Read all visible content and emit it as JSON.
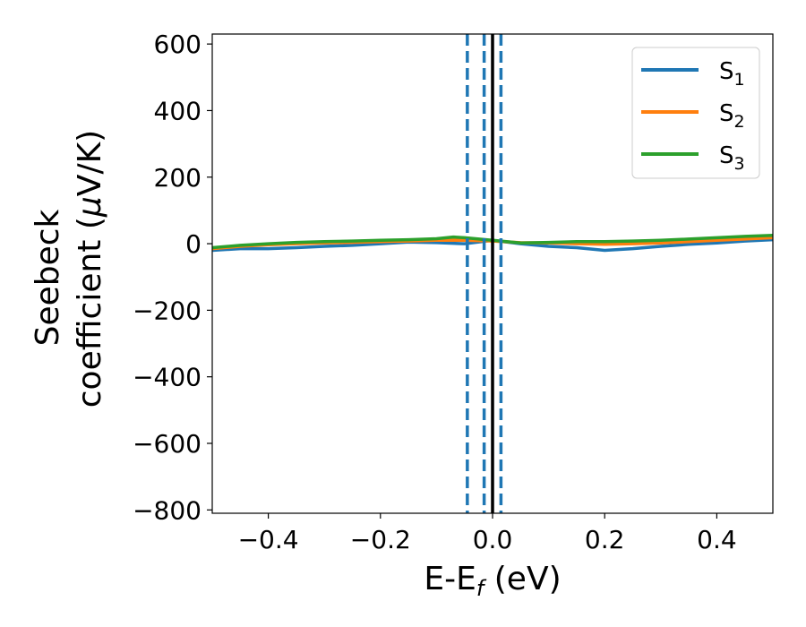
{
  "chart_data": {
    "type": "line",
    "xlabel": {
      "main": "E-E",
      "sub": "f",
      "unit": " (eV)"
    },
    "ylabel": {
      "line1": "Seebeck",
      "line2": "coefficient  (",
      "mu": "μ",
      "unit": "V/K)"
    },
    "xlim": [
      -0.5,
      0.5
    ],
    "ylim": [
      -810,
      630
    ],
    "x_ticks": [
      -0.4,
      -0.2,
      0.0,
      0.2,
      0.4
    ],
    "x_tick_labels": [
      "−0.4",
      "−0.2",
      "0.0",
      "0.2",
      "0.4"
    ],
    "y_ticks": [
      600,
      400,
      200,
      0,
      -200,
      -400,
      -600,
      -800
    ],
    "y_tick_labels": [
      "600",
      "400",
      "200",
      "0",
      "−200",
      "−400",
      "−600",
      "−800"
    ],
    "grid": false,
    "legend_position": "top-right",
    "series": [
      {
        "name": "S",
        "sub": "1",
        "color": "#1f77b4",
        "x": [
          -0.5,
          -0.45,
          -0.4,
          -0.35,
          -0.3,
          -0.25,
          -0.2,
          -0.15,
          -0.1,
          -0.05,
          0.0,
          0.05,
          0.1,
          0.15,
          0.2,
          0.25,
          0.3,
          0.35,
          0.4,
          0.45,
          0.5
        ],
        "y": [
          -20,
          -15,
          -15,
          -12,
          -8,
          -5,
          0,
          5,
          3,
          0,
          10,
          0,
          -8,
          -12,
          -20,
          -15,
          -8,
          -2,
          2,
          8,
          12
        ]
      },
      {
        "name": "S",
        "sub": "2",
        "color": "#ff7f0e",
        "x": [
          -0.5,
          -0.45,
          -0.4,
          -0.35,
          -0.3,
          -0.25,
          -0.2,
          -0.15,
          -0.1,
          -0.05,
          0.0,
          0.05,
          0.1,
          0.15,
          0.2,
          0.25,
          0.3,
          0.35,
          0.4,
          0.45,
          0.5
        ],
        "y": [
          -15,
          -8,
          -3,
          0,
          2,
          4,
          6,
          8,
          10,
          10,
          8,
          3,
          2,
          0,
          -2,
          0,
          2,
          6,
          10,
          14,
          18
        ]
      },
      {
        "name": "S",
        "sub": "3",
        "color": "#2ca02c",
        "x": [
          -0.5,
          -0.45,
          -0.4,
          -0.35,
          -0.3,
          -0.25,
          -0.2,
          -0.15,
          -0.1,
          -0.07,
          -0.05,
          0.0,
          0.05,
          0.1,
          0.15,
          0.2,
          0.25,
          0.3,
          0.35,
          0.4,
          0.45,
          0.5
        ],
        "y": [
          -12,
          -5,
          0,
          4,
          6,
          8,
          10,
          12,
          15,
          20,
          18,
          10,
          2,
          4,
          6,
          6,
          8,
          10,
          14,
          18,
          22,
          25
        ]
      }
    ],
    "vertical_lines": [
      {
        "x": -0.045,
        "style": "dashed",
        "color": "#1f77b4"
      },
      {
        "x": -0.015,
        "style": "dashed",
        "color": "#1f77b4"
      },
      {
        "x": 0.015,
        "style": "dashed",
        "color": "#1f77b4"
      },
      {
        "x": 0.0,
        "style": "solid",
        "color": "#000000"
      }
    ]
  }
}
